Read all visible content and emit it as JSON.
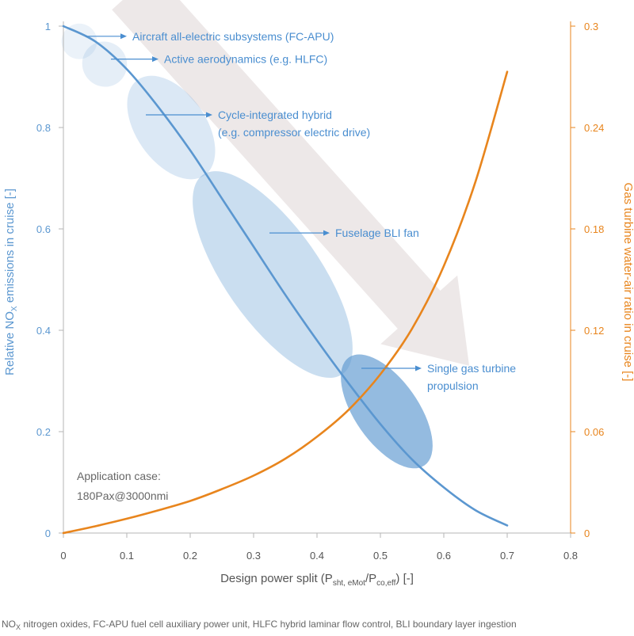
{
  "chart_data": {
    "type": "line",
    "x_axis": {
      "label_main": "Design power split (P",
      "label_sub1": "sht, eMot",
      "label_mid": "/P",
      "label_sub2": "co,eff",
      "label_end": ") [-]",
      "range": [
        0,
        0.8
      ],
      "ticks": [
        "0",
        "0.1",
        "0.2",
        "0.3",
        "0.4",
        "0.5",
        "0.6",
        "0.7",
        "0.8"
      ]
    },
    "y_axis_left": {
      "label_main": "Relative NO",
      "label_sub": "X",
      "label_end": " emissions in cruise [-]",
      "range": [
        0,
        1
      ],
      "ticks": [
        "0",
        "0.2",
        "0.4",
        "0.6",
        "0.8",
        "1"
      ],
      "color": "#5b97d0"
    },
    "y_axis_right": {
      "label": "Gas turbine water-air ratio in cruise [-]",
      "range": [
        0,
        0.3
      ],
      "ticks": [
        "0",
        "0.06",
        "0.12",
        "0.18",
        "0.24",
        "0.3"
      ],
      "color": "#e8851d"
    },
    "series": [
      {
        "axis": "left",
        "color": "#5b97d0",
        "x": [
          0,
          0.05,
          0.1,
          0.15,
          0.2,
          0.25,
          0.3,
          0.35,
          0.4,
          0.45,
          0.5,
          0.55,
          0.6,
          0.65,
          0.7
        ],
        "y": [
          1.0,
          0.97,
          0.915,
          0.84,
          0.755,
          0.66,
          0.565,
          0.47,
          0.38,
          0.295,
          0.215,
          0.145,
          0.09,
          0.045,
          0.015
        ]
      },
      {
        "axis": "right",
        "color": "#e8851d",
        "x": [
          0,
          0.05,
          0.1,
          0.15,
          0.2,
          0.25,
          0.3,
          0.35,
          0.4,
          0.45,
          0.5,
          0.55,
          0.6,
          0.65,
          0.7
        ],
        "y": [
          0.0,
          0.004,
          0.0085,
          0.0135,
          0.019,
          0.026,
          0.034,
          0.044,
          0.057,
          0.073,
          0.094,
          0.121,
          0.158,
          0.208,
          0.273
        ]
      }
    ],
    "regions": [
      {
        "label_lines": [
          "Aircraft all-electric subsystems (FC-APU)"
        ],
        "cx": 0.025,
        "cy": 0.97,
        "rx": 0.028,
        "ry": 0.035,
        "angle": 35,
        "opacity": 0.12,
        "arrow_from": [
          0.035,
          0.98
        ],
        "arrow_to": [
          0.1,
          0.98
        ]
      },
      {
        "label_lines": [
          "Active aerodynamics (e.g. HLFC)"
        ],
        "cx": 0.065,
        "cy": 0.925,
        "rx": 0.035,
        "ry": 0.045,
        "angle": 35,
        "opacity": 0.16,
        "arrow_from": [
          0.075,
          0.935
        ],
        "arrow_to": [
          0.15,
          0.935
        ]
      },
      {
        "label_lines": [
          "Cycle-integrated hybrid",
          "(e.g. compressor electric drive)"
        ],
        "cx": 0.17,
        "cy": 0.8,
        "rx": 0.055,
        "ry": 0.115,
        "angle": 35,
        "opacity": 0.22,
        "arrow_from": [
          0.13,
          0.825
        ],
        "arrow_to": [
          0.235,
          0.825
        ]
      },
      {
        "label_lines": [
          "Fuselage BLI fan"
        ],
        "cx": 0.33,
        "cy": 0.51,
        "rx": 0.075,
        "ry": 0.24,
        "angle": 35,
        "opacity": 0.32,
        "arrow_from": [
          0.325,
          0.592
        ],
        "arrow_to": [
          0.42,
          0.592
        ]
      },
      {
        "label_lines": [
          "Single gas turbine",
          "propulsion"
        ],
        "cx": 0.51,
        "cy": 0.24,
        "rx": 0.05,
        "ry": 0.13,
        "angle": 35,
        "opacity": 0.65,
        "arrow_from": [
          0.47,
          0.325
        ],
        "arrow_to": [
          0.565,
          0.325
        ]
      }
    ],
    "grid": false,
    "annotation_case": [
      "Application case:",
      "180Pax@3000nmi"
    ],
    "trend_arrow": {
      "from": [
        0.11,
        1.07
      ],
      "to": [
        0.64,
        0.33
      ],
      "color": "#ede8e8"
    }
  },
  "footnote": {
    "parts": [
      {
        "text": "NO",
        "sub": false
      },
      {
        "text": "X",
        "sub": true
      },
      {
        "text": " nitrogen oxides, FC-APU fuel cell auxiliary power unit, HLFC hybrid laminar flow control, BLI boundary layer ingestion",
        "sub": false
      }
    ]
  }
}
